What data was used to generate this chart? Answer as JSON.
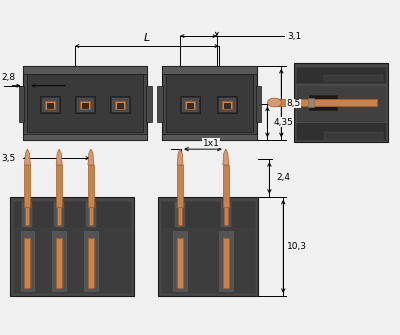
{
  "bg": "#f0f0f0",
  "dark1": "#484848",
  "dark2": "#3a3a3a",
  "dark3": "#2e2e2e",
  "mid": "#585858",
  "slot": "#636363",
  "copper": "#c8824a",
  "copper_hi": "#d89870",
  "copper_dk": "#a06030",
  "black": "#1a1a1a",
  "hatching": "#303030"
}
